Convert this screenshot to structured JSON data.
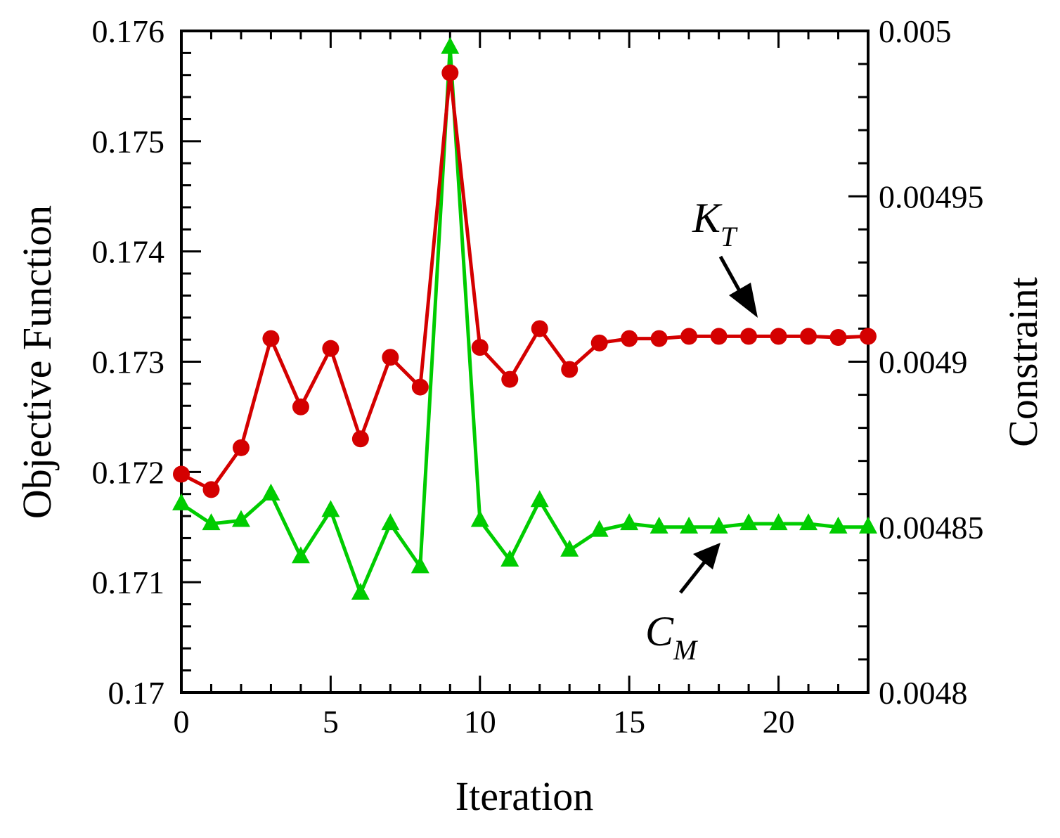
{
  "chart_data": {
    "type": "line",
    "title": "",
    "xlabel": "Iteration",
    "ylabel": "Objective Function",
    "ylabel_right": "Constraint",
    "xlim": [
      0,
      23
    ],
    "ylim": [
      0.17,
      0.176
    ],
    "ylim_right": [
      0.0048,
      0.005
    ],
    "x_ticks": [
      0,
      5,
      10,
      15,
      20
    ],
    "x_tick_labels": [
      "0",
      "5",
      "10",
      "15",
      "20"
    ],
    "y_ticks": [
      0.17,
      0.171,
      0.172,
      0.173,
      0.174,
      0.175,
      0.176
    ],
    "y_tick_labels": [
      "0.17",
      "0.171",
      "0.172",
      "0.173",
      "0.174",
      "0.175",
      "0.176"
    ],
    "y_right_ticks": [
      0.0048,
      0.00485,
      0.0049,
      0.00495,
      0.005
    ],
    "y_right_tick_labels": [
      "0.0048",
      "0.00485",
      "0.0049",
      "0.00495",
      "0.005"
    ],
    "grid": false,
    "x": [
      0,
      1,
      2,
      3,
      4,
      5,
      6,
      7,
      8,
      9,
      10,
      11,
      12,
      13,
      14,
      15,
      16,
      17,
      18,
      19,
      20,
      21,
      22,
      23
    ],
    "series": [
      {
        "name": "K_T",
        "axis": "left",
        "color": "#d40000",
        "marker": "circle",
        "values": [
          0.17198,
          0.17184,
          0.17222,
          0.17321,
          0.17259,
          0.17312,
          0.1723,
          0.17304,
          0.17277,
          0.17562,
          0.17313,
          0.17284,
          0.1733,
          0.17293,
          0.17317,
          0.17321,
          0.17321,
          0.17323,
          0.17323,
          0.17323,
          0.17323,
          0.17323,
          0.17322,
          0.17323
        ]
      },
      {
        "name": "C_M",
        "axis": "right",
        "color": "#00cc00",
        "marker": "triangle",
        "values": [
          0.004857,
          0.004851,
          0.004852,
          0.00486,
          0.004841,
          0.004855,
          0.00483,
          0.004851,
          0.004838,
          0.004995,
          0.004852,
          0.00484,
          0.004858,
          0.004843,
          0.004849,
          0.004851,
          0.00485,
          0.00485,
          0.00485,
          0.004851,
          0.004851,
          0.004851,
          0.00485,
          0.00485
        ]
      }
    ],
    "annotations": [
      {
        "main": "K",
        "sub": "T",
        "points_to": "K_T"
      },
      {
        "main": "C",
        "sub": "M",
        "points_to": "C_M"
      }
    ]
  }
}
